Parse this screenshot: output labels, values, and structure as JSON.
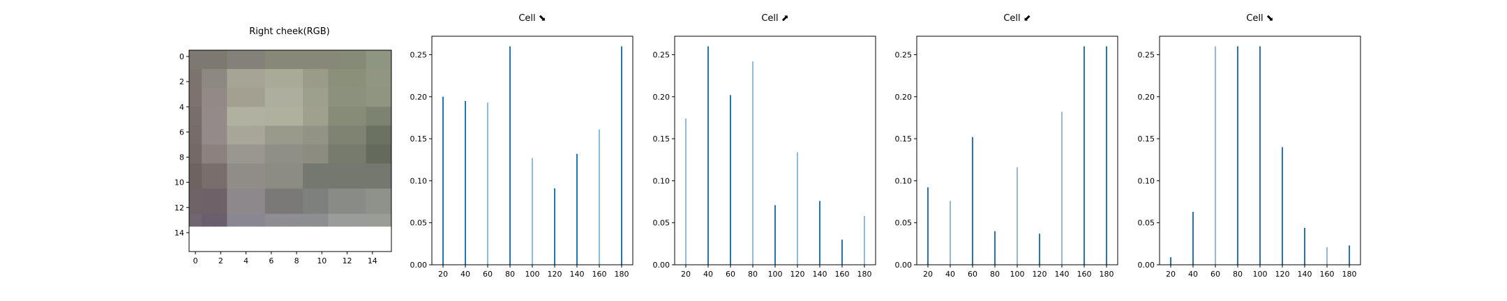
{
  "chart_data": [
    {
      "type": "heatmap",
      "title": "Right cheek(RGB)",
      "xticks": [
        "0",
        "2",
        "4",
        "6",
        "8",
        "10",
        "12",
        "14"
      ],
      "yticks": [
        "0",
        "2",
        "4",
        "6",
        "8",
        "10",
        "12",
        "14"
      ],
      "xlim": [
        -0.5,
        15.5
      ],
      "ylim": [
        15.5,
        -0.5
      ],
      "rows": [
        [
          "#7e7970",
          "#7e7970",
          "#7e7970",
          "#84807a",
          "#84807a",
          "#84807a",
          "#878878",
          "#878878",
          "#878878",
          "#878878",
          "#878878",
          "#878878",
          "#868b77",
          "#868b77",
          "#8e9580",
          "#8e9580"
        ],
        [
          "#7c736e",
          "#8e8883",
          "#8e8883",
          "#a6a595",
          "#a6a595",
          "#a6a595",
          "#a9aa97",
          "#a9aa97",
          "#a9aa97",
          "#9a9c89",
          "#9a9c89",
          "#8a9079",
          "#8a9079",
          "#8a9079",
          "#909682",
          "#909682"
        ],
        [
          "#7d726e",
          "#938a87",
          "#938a87",
          "#a3a092",
          "#a3a092",
          "#a3a092",
          "#aeae9f",
          "#aeae9f",
          "#aeae9f",
          "#9ea08e",
          "#9ea08e",
          "#8c917d",
          "#8c917d",
          "#8c917d",
          "#8f9580",
          "#8f9580"
        ],
        [
          "#786e6a",
          "#948b89",
          "#948b89",
          "#b0b1a1",
          "#b0b1a1",
          "#b0b1a1",
          "#b0b09e",
          "#b0b09e",
          "#b0b09e",
          "#a0a08f",
          "#a0a08f",
          "#868c78",
          "#868c78",
          "#868c78",
          "#7c8370",
          "#7c8370"
        ],
        [
          "#786c69",
          "#948a89",
          "#948a89",
          "#a8a599",
          "#a8a599",
          "#a8a599",
          "#9a9a8b",
          "#9a9a8b",
          "#9a9a8b",
          "#939384",
          "#939384",
          "#7e8372",
          "#7e8372",
          "#7e8372",
          "#6b7262",
          "#6b7262"
        ],
        [
          "#756966",
          "#8c817f",
          "#8c817f",
          "#9a9690",
          "#9a9690",
          "#9a9690",
          "#8f8f85",
          "#8f8f85",
          "#8f8f85",
          "#8c8c80",
          "#8c8c80",
          "#767b6d",
          "#767b6d",
          "#767b6d",
          "#646b5d",
          "#646b5d"
        ],
        [
          "#6f6362",
          "#7a6e6c",
          "#7a6e6c",
          "#908c87",
          "#908c87",
          "#908c87",
          "#8d8c83",
          "#8d8c83",
          "#8d8c83",
          "#75786e",
          "#75786e",
          "#75786e",
          "#75786e",
          "#75786e",
          "#75786e",
          "#75786e"
        ],
        [
          "#6f6367",
          "#6e6268",
          "#6e6268",
          "#8d888c",
          "#8d888c",
          "#8d888c",
          "#7a7978",
          "#7a7978",
          "#7a7978",
          "#7e807e",
          "#7e807e",
          "#898c86",
          "#898c86",
          "#898c86",
          "#8e928b",
          "#8e928b"
        ],
        [
          "#716571",
          "#6a5f6c",
          "#6a5f6c",
          "#8a8692",
          "#8a8692",
          "#8a8692",
          "#8e8d92",
          "#8e8d92",
          "#8e8d92",
          "#8c8e8f",
          "#8c8e8f",
          "#999c98",
          "#999c98",
          "#999c98",
          "#9a9d96",
          "#9a9d96"
        ]
      ],
      "row_heights": [
        1.5,
        1.5,
        1.5,
        1.5,
        1.5,
        1.5,
        2,
        2,
        1
      ],
      "colors": {
        "frame": "#000000"
      }
    },
    {
      "type": "bar",
      "title": "Cell ⬊",
      "x": [
        20,
        40,
        60,
        80,
        100,
        120,
        140,
        160,
        180
      ],
      "values": [
        0.2,
        0.195,
        0.193,
        0.26,
        0.127,
        0.091,
        0.132,
        0.161,
        0.26
      ],
      "bar_widths": [
        2,
        2,
        1,
        2,
        1,
        2,
        2,
        1,
        2
      ],
      "xlim": [
        10,
        190
      ],
      "ylim": [
        0,
        0.272
      ],
      "xticks": [
        20,
        40,
        60,
        80,
        100,
        120,
        140,
        160,
        180
      ],
      "yticks": [
        "0.00",
        "0.05",
        "0.10",
        "0.15",
        "0.20",
        "0.25"
      ],
      "ytick_values": [
        0,
        0.05,
        0.1,
        0.15,
        0.2,
        0.25
      ],
      "color": "#1f77b4"
    },
    {
      "type": "bar",
      "title": "Cell ⬈",
      "x": [
        20,
        40,
        60,
        80,
        100,
        120,
        140,
        160,
        180
      ],
      "values": [
        0.174,
        0.26,
        0.202,
        0.242,
        0.071,
        0.134,
        0.076,
        0.03,
        0.058
      ],
      "bar_widths": [
        1,
        2,
        2,
        1,
        2,
        1,
        2,
        2,
        1
      ],
      "xlim": [
        10,
        190
      ],
      "ylim": [
        0,
        0.272
      ],
      "xticks": [
        20,
        40,
        60,
        80,
        100,
        120,
        140,
        160,
        180
      ],
      "yticks": [
        "0.00",
        "0.05",
        "0.10",
        "0.15",
        "0.20",
        "0.25"
      ],
      "ytick_values": [
        0,
        0.05,
        0.1,
        0.15,
        0.2,
        0.25
      ],
      "color": "#1f77b4"
    },
    {
      "type": "bar",
      "title": "Cell ⬋",
      "x": [
        20,
        40,
        60,
        80,
        100,
        120,
        140,
        160,
        180
      ],
      "values": [
        0.092,
        0.076,
        0.152,
        0.04,
        0.116,
        0.037,
        0.182,
        0.26,
        0.26
      ],
      "bar_widths": [
        2,
        1,
        2,
        2,
        1,
        2,
        1,
        2,
        2
      ],
      "xlim": [
        10,
        190
      ],
      "ylim": [
        0,
        0.272
      ],
      "xticks": [
        20,
        40,
        60,
        80,
        100,
        120,
        140,
        160,
        180
      ],
      "yticks": [
        "0.00",
        "0.05",
        "0.10",
        "0.15",
        "0.20",
        "0.25"
      ],
      "ytick_values": [
        0,
        0.05,
        0.1,
        0.15,
        0.2,
        0.25
      ],
      "color": "#1f77b4"
    },
    {
      "type": "bar",
      "title": "Cell ⬊",
      "x": [
        20,
        40,
        60,
        80,
        100,
        120,
        140,
        160,
        180
      ],
      "values": [
        0.009,
        0.063,
        0.26,
        0.26,
        0.26,
        0.14,
        0.044,
        0.021,
        0.023
      ],
      "bar_widths": [
        2,
        2,
        1,
        2,
        2,
        2,
        2,
        1,
        2
      ],
      "xlim": [
        10,
        190
      ],
      "ylim": [
        0,
        0.272
      ],
      "xticks": [
        20,
        40,
        60,
        80,
        100,
        120,
        140,
        160,
        180
      ],
      "yticks": [
        "0.00",
        "0.05",
        "0.10",
        "0.15",
        "0.20",
        "0.25"
      ],
      "ytick_values": [
        0,
        0.05,
        0.1,
        0.15,
        0.2,
        0.25
      ],
      "color": "#1f77b4"
    }
  ]
}
